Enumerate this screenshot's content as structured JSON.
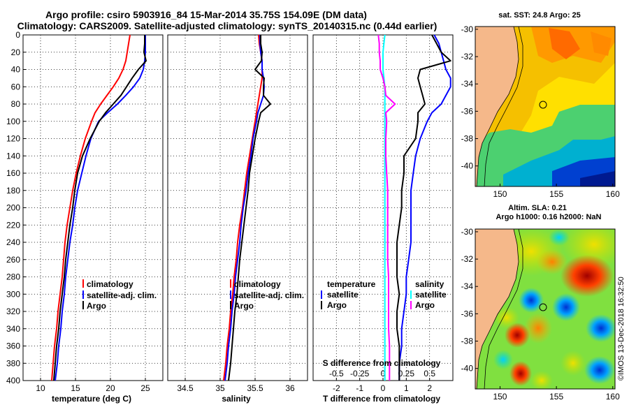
{
  "title_line1": "Argo profile: csiro 5903916_84 15-Mar-2014 35.75S 154.09E (DM data)",
  "title_line2": "Climatology: CARS2009. Satellite-adjusted climatology: synTS_20140315.nc (0.44d earlier)",
  "colors": {
    "climatology": "#ff0000",
    "satellite": "#0000ff",
    "argo": "#000000",
    "s_satellite": "#00ffff",
    "s_argo": "#ff00ff",
    "land": "#f5b88a"
  },
  "chart_data": [
    {
      "type": "line",
      "xlabel": "temperature (deg C)",
      "ylabel": "depth",
      "xlim": [
        7.5,
        27.5
      ],
      "ylim": [
        400,
        0
      ],
      "xticks": [
        10,
        15,
        20,
        25
      ],
      "yticks": [
        0,
        20,
        40,
        60,
        80,
        100,
        120,
        140,
        160,
        180,
        200,
        220,
        240,
        260,
        280,
        300,
        320,
        340,
        360,
        380,
        400
      ],
      "legend": [
        "climatology",
        "satellite-adj. clim.",
        "Argo"
      ],
      "depth": [
        0,
        10,
        20,
        30,
        40,
        50,
        60,
        70,
        80,
        90,
        100,
        120,
        140,
        160,
        180,
        200,
        220,
        240,
        260,
        280,
        300,
        320,
        340,
        360,
        380,
        400
      ],
      "series": [
        {
          "name": "climatology",
          "color": "#ff0000",
          "values": [
            22.8,
            22.6,
            22.4,
            22.2,
            21.8,
            21.2,
            20.4,
            19.5,
            18.6,
            17.8,
            17.3,
            16.4,
            15.7,
            15.1,
            14.6,
            14.2,
            13.8,
            13.5,
            13.3,
            13.1,
            12.8,
            12.5,
            12.3,
            12.0,
            11.8,
            11.6
          ]
        },
        {
          "name": "satellite-adj. clim.",
          "color": "#0000ff",
          "values": [
            25.0,
            25.0,
            25.0,
            24.9,
            24.7,
            24.2,
            23.3,
            22.2,
            21.0,
            19.6,
            18.3,
            17.2,
            16.5,
            15.9,
            15.3,
            14.9,
            14.6,
            14.2,
            13.9,
            13.6,
            13.4,
            13.1,
            12.9,
            12.6,
            12.4,
            12.1
          ]
        },
        {
          "name": "Argo",
          "color": "#000000",
          "values": [
            24.9,
            24.9,
            24.8,
            25.1,
            24.0,
            23.1,
            22.3,
            21.5,
            20.4,
            19.3,
            18.4,
            17.1,
            16.0,
            15.3,
            14.9,
            14.6,
            14.2,
            13.9,
            13.6,
            13.4,
            13.1,
            12.8,
            12.6,
            12.3,
            12.1,
            11.9
          ]
        }
      ]
    },
    {
      "type": "line",
      "xlabel": "salinity",
      "ylabel": "depth",
      "xlim": [
        34.25,
        36.25
      ],
      "ylim": [
        400,
        0
      ],
      "xticks": [
        34.5,
        35,
        35.5,
        36
      ],
      "xticklabels": [
        "34.5",
        "35",
        "35.5",
        "36"
      ],
      "yticks": [
        0,
        20,
        40,
        60,
        80,
        100,
        120,
        140,
        160,
        180,
        200,
        220,
        240,
        260,
        280,
        300,
        320,
        340,
        360,
        380,
        400
      ],
      "legend": [
        "climatology",
        "satellite-adj. clim.",
        "Argo"
      ],
      "depth": [
        0,
        10,
        20,
        30,
        40,
        50,
        60,
        70,
        80,
        90,
        100,
        120,
        140,
        160,
        180,
        200,
        220,
        240,
        260,
        280,
        300,
        320,
        340,
        360,
        380,
        400
      ],
      "series": [
        {
          "name": "climatology",
          "color": "#ff0000",
          "values": [
            35.55,
            35.56,
            35.58,
            35.6,
            35.6,
            35.6,
            35.58,
            35.56,
            35.54,
            35.52,
            35.5,
            35.46,
            35.42,
            35.38,
            35.35,
            35.32,
            35.28,
            35.25,
            35.23,
            35.2,
            35.18,
            35.15,
            35.13,
            35.1,
            35.08,
            35.05
          ]
        },
        {
          "name": "satellite-adj. clim.",
          "color": "#0000ff",
          "values": [
            35.57,
            35.57,
            35.58,
            35.6,
            35.6,
            35.62,
            35.63,
            35.62,
            35.58,
            35.54,
            35.52,
            35.47,
            35.44,
            35.4,
            35.37,
            35.33,
            35.3,
            35.28,
            35.25,
            35.22,
            35.2,
            35.17,
            35.15,
            35.12,
            35.1,
            35.07
          ]
        },
        {
          "name": "Argo",
          "color": "#000000",
          "values": [
            35.58,
            35.58,
            35.6,
            35.59,
            35.5,
            35.63,
            35.62,
            35.62,
            35.72,
            35.58,
            35.55,
            35.5,
            35.46,
            35.42,
            35.4,
            35.37,
            35.34,
            35.31,
            35.28,
            35.26,
            35.24,
            35.21,
            35.19,
            35.17,
            35.15,
            35.12
          ]
        }
      ]
    },
    {
      "type": "line",
      "xlabel": "T difference from climatology",
      "xlabel_top": "S difference from climatology",
      "ylabel": "depth",
      "xlim": [
        -3,
        3
      ],
      "ylim": [
        400,
        0
      ],
      "xticks": [
        -2,
        -1,
        0,
        1,
        2
      ],
      "xticks_top": [
        -0.5,
        -0.25,
        0,
        0.25,
        0.5
      ],
      "yticks": [
        0,
        20,
        40,
        60,
        80,
        100,
        120,
        140,
        160,
        180,
        200,
        220,
        240,
        260,
        280,
        300,
        320,
        340,
        360,
        380,
        400
      ],
      "legend_temperature": {
        "title": "temperature",
        "entries": [
          "satellite",
          "Argo"
        ]
      },
      "legend_salinity": {
        "title": "salinity",
        "entries": [
          "satellite",
          "Argo"
        ]
      },
      "depth": [
        0,
        10,
        20,
        30,
        40,
        50,
        60,
        70,
        80,
        90,
        100,
        120,
        140,
        160,
        180,
        200,
        220,
        240,
        260,
        280,
        300,
        320,
        340,
        360,
        380,
        400
      ],
      "series": [
        {
          "name": "temperature satellite",
          "color": "#0000ff",
          "values": [
            2.2,
            2.4,
            2.5,
            2.6,
            2.7,
            2.9,
            2.9,
            2.7,
            2.5,
            2.1,
            1.9,
            1.6,
            1.4,
            1.3,
            1.2,
            1.2,
            1.2,
            1.2,
            1.1,
            1.0,
            1.0,
            0.9,
            0.8,
            0.8,
            0.7,
            0.7
          ]
        },
        {
          "name": "temperature Argo",
          "color": "#000000",
          "values": [
            2.1,
            2.3,
            2.5,
            2.9,
            1.6,
            1.5,
            1.6,
            1.7,
            1.8,
            1.5,
            1.5,
            1.4,
            0.9,
            0.9,
            0.8,
            0.8,
            0.7,
            0.6,
            0.6,
            0.6,
            0.7,
            0.6,
            0.6,
            0.7,
            0.7,
            0.7
          ]
        },
        {
          "name": "salinity satellite",
          "color": "#00ffff",
          "values": [
            0.02,
            0.01,
            0.0,
            0.0,
            0.0,
            0.01,
            0.02,
            0.02,
            0.02,
            0.02,
            0.02,
            0.02,
            0.02,
            0.02,
            0.02,
            0.02,
            0.02,
            0.02,
            0.02,
            0.02,
            0.02,
            0.02,
            0.02,
            0.02,
            0.02,
            0.02
          ]
        },
        {
          "name": "salinity Argo",
          "color": "#ff00ff",
          "values": [
            -0.05,
            -0.04,
            -0.04,
            -0.03,
            -0.03,
            0.0,
            0.02,
            0.03,
            0.13,
            0.03,
            0.04,
            0.03,
            0.03,
            0.04,
            0.05,
            0.05,
            0.05,
            0.05,
            0.05,
            0.06,
            0.06,
            0.06,
            0.06,
            0.07,
            0.07,
            0.07
          ]
        }
      ]
    }
  ],
  "maps": {
    "sst": {
      "title": "sat. SST: 24.8 Argo: 25",
      "lat_ticks": [
        "-30",
        "-32",
        "-34",
        "-36",
        "-38",
        "-40"
      ],
      "lon_ticks": [
        "150",
        "155",
        "160"
      ],
      "lat_range": [
        -41.5,
        -29.8
      ],
      "lon_range": [
        147.8,
        160.2
      ],
      "argo_lon": 154.09,
      "argo_lat": -35.75
    },
    "sla": {
      "title_line1": "Altim. SLA: 0.21",
      "title_line2": "Argo h1000: 0.16 h2000: NaN",
      "lat_ticks": [
        "-30",
        "-32",
        "-34",
        "-36",
        "-38",
        "-40"
      ],
      "lon_ticks": [
        "150",
        "155",
        "160"
      ],
      "lat_range": [
        -41.5,
        -29.8
      ],
      "lon_range": [
        147.8,
        160.2
      ],
      "argo_lon": 154.09,
      "argo_lat": -35.75
    }
  },
  "stamp": "©IMOS 13-Dec-2018 16:32:50"
}
